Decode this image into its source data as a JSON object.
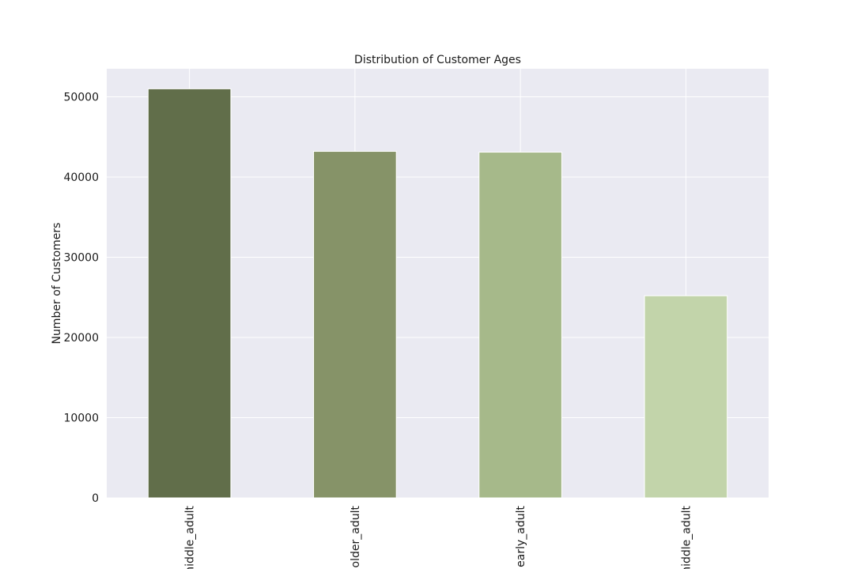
{
  "chart_data": {
    "type": "bar",
    "title": "Distribution of Customer Ages",
    "xlabel": "",
    "ylabel": "Number of Customers",
    "categories": [
      "middle_adult",
      "older_adult",
      "early_adult",
      "middle_adult"
    ],
    "values": [
      51000,
      43200,
      43100,
      25200
    ],
    "ylim": [
      0,
      53500
    ],
    "yticks": [
      0,
      10000,
      20000,
      30000,
      40000,
      50000
    ],
    "grid": true,
    "legend": "none",
    "background_color": "#eaeaf2",
    "grid_color": "#ffffff",
    "bar_colors": [
      "#616e4a",
      "#869368",
      "#a6b98a",
      "#c2d4aa"
    ]
  }
}
